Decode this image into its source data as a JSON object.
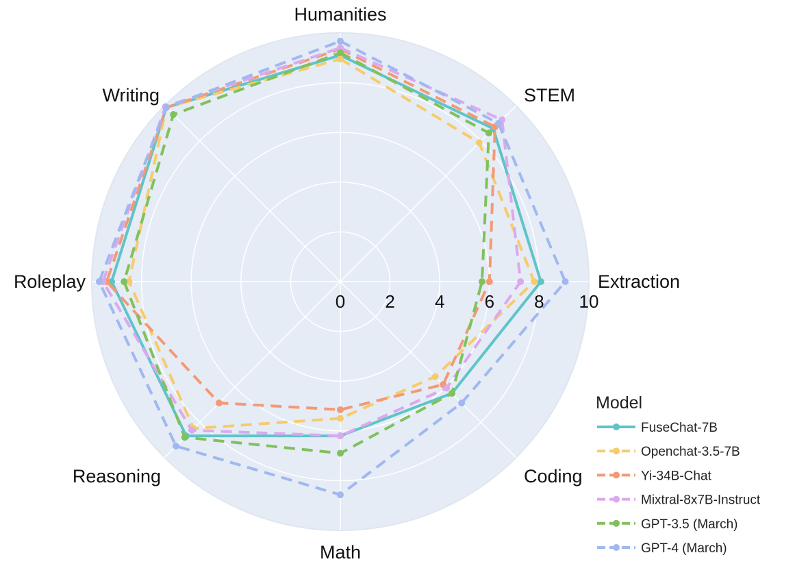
{
  "chart_data": {
    "type": "radar",
    "categories": [
      "Humanities",
      "STEM",
      "Extraction",
      "Coding",
      "Math",
      "Reasoning",
      "Roleplay",
      "Writing"
    ],
    "radial_ticks": [
      "0",
      "2",
      "4",
      "6",
      "8",
      "10"
    ],
    "rlim": [
      0,
      10
    ],
    "grid": true,
    "legend_title": "Model",
    "legend_position": "bottom-right",
    "series": [
      {
        "name": "FuseChat-7B",
        "color": "#5fc4c8",
        "dash": "solid",
        "values": [
          9.1,
          8.7,
          8.07,
          6.35,
          6.2,
          8.77,
          9.2,
          9.9
        ]
      },
      {
        "name": "Openchat-3.5-7B",
        "color": "#f7cb6c",
        "dash": "dash",
        "values": [
          8.95,
          7.9,
          7.8,
          5.4,
          5.5,
          8.35,
          8.5,
          9.9
        ]
      },
      {
        "name": "Yi-34B-Chat",
        "color": "#f39a74",
        "dash": "dash",
        "values": [
          9.35,
          8.8,
          6.0,
          5.85,
          5.15,
          6.9,
          9.4,
          9.9
        ]
      },
      {
        "name": "Mixtral-8x7B-Instruct",
        "color": "#dca8ee",
        "dash": "dash",
        "values": [
          9.4,
          9.2,
          7.25,
          6.05,
          6.2,
          8.45,
          9.55,
          9.95
        ]
      },
      {
        "name": "GPT-3.5 (March)",
        "color": "#80c15b",
        "dash": "dash",
        "values": [
          9.2,
          8.45,
          5.7,
          6.35,
          6.9,
          8.85,
          8.7,
          9.5
        ]
      },
      {
        "name": "GPT-4 (March)",
        "color": "#a0b8ef",
        "dash": "dash",
        "values": [
          9.67,
          9.0,
          9.05,
          6.9,
          8.57,
          9.35,
          9.7,
          9.9
        ]
      }
    ]
  }
}
